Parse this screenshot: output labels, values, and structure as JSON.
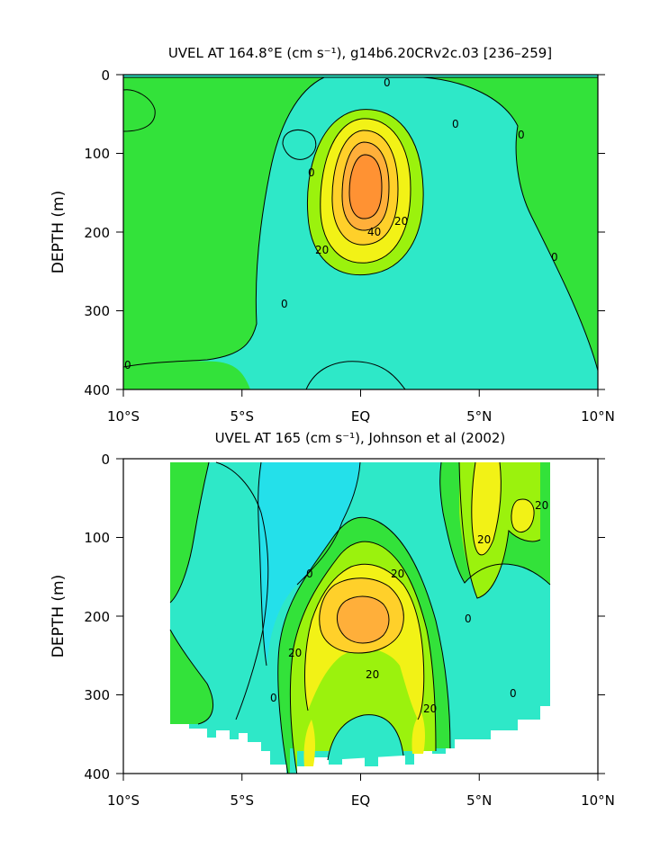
{
  "chart_data": [
    {
      "type": "contour",
      "title": "UVEL AT 164.8°E (cm s⁻¹), g14b6.20CRv2c.03 [236–259]",
      "xlabel": "",
      "ylabel": "DEPTH (m)",
      "xlim": [
        -10,
        10
      ],
      "ylim": [
        400,
        0
      ],
      "x_ticks": [
        -10,
        -5,
        0,
        5,
        10
      ],
      "x_tick_labels": [
        "10°S",
        "5°S",
        "EQ",
        "5°N",
        "10°N"
      ],
      "y_ticks": [
        0,
        100,
        200,
        300,
        400
      ],
      "y_tick_labels": [
        "0",
        "100",
        "200",
        "300",
        "400"
      ],
      "contour_interval": 10,
      "contour_labels": [
        "0",
        "0",
        "0",
        "0",
        "0",
        "0",
        "20",
        "20",
        "40"
      ],
      "fill_levels": [
        {
          "range": "< 0",
          "color": "#2ee8c8"
        },
        {
          "range": "0-10",
          "color": "#33e23a"
        },
        {
          "range": "10-20",
          "color": "#9bf20d"
        },
        {
          "range": "20-30",
          "color": "#f2f216"
        },
        {
          "range": "30-40",
          "color": "#ffd02a"
        },
        {
          "range": "40-50",
          "color": "#ffaf3a"
        },
        {
          "range": "> 50",
          "color": "#ff9233"
        }
      ],
      "core": {
        "lat": 0,
        "depth": 170,
        "max_speed": 55
      }
    },
    {
      "type": "contour",
      "title": "UVEL AT 165 (cm s⁻¹), Johnson et al (2002)",
      "xlabel": "",
      "ylabel": "DEPTH (m)",
      "xlim": [
        -10,
        10
      ],
      "ylim": [
        400,
        0
      ],
      "x_ticks": [
        -10,
        -5,
        0,
        5,
        10
      ],
      "x_tick_labels": [
        "10°S",
        "5°S",
        "EQ",
        "5°N",
        "10°N"
      ],
      "y_ticks": [
        0,
        100,
        200,
        300,
        400
      ],
      "y_tick_labels": [
        "0",
        "100",
        "200",
        "300",
        "400"
      ],
      "data_extent_lat": [
        -8,
        8
      ],
      "contour_interval": 10,
      "contour_labels": [
        "0",
        "0",
        "0",
        "0",
        "20",
        "20",
        "20",
        "20",
        "20",
        "20"
      ],
      "fill_levels": [
        {
          "range": "< -10",
          "color": "#22e8e8"
        },
        {
          "range": "-10-0",
          "color": "#2ee8c8"
        },
        {
          "range": "0-10",
          "color": "#33e23a"
        },
        {
          "range": "10-20",
          "color": "#9bf20d"
        },
        {
          "range": "20-30",
          "color": "#f2f216"
        },
        {
          "range": "30-40",
          "color": "#ffd02a"
        },
        {
          "range": "> 40",
          "color": "#ffaf3a"
        }
      ],
      "core": {
        "lat": -0.5,
        "depth": 190,
        "max_speed": 45
      }
    }
  ]
}
